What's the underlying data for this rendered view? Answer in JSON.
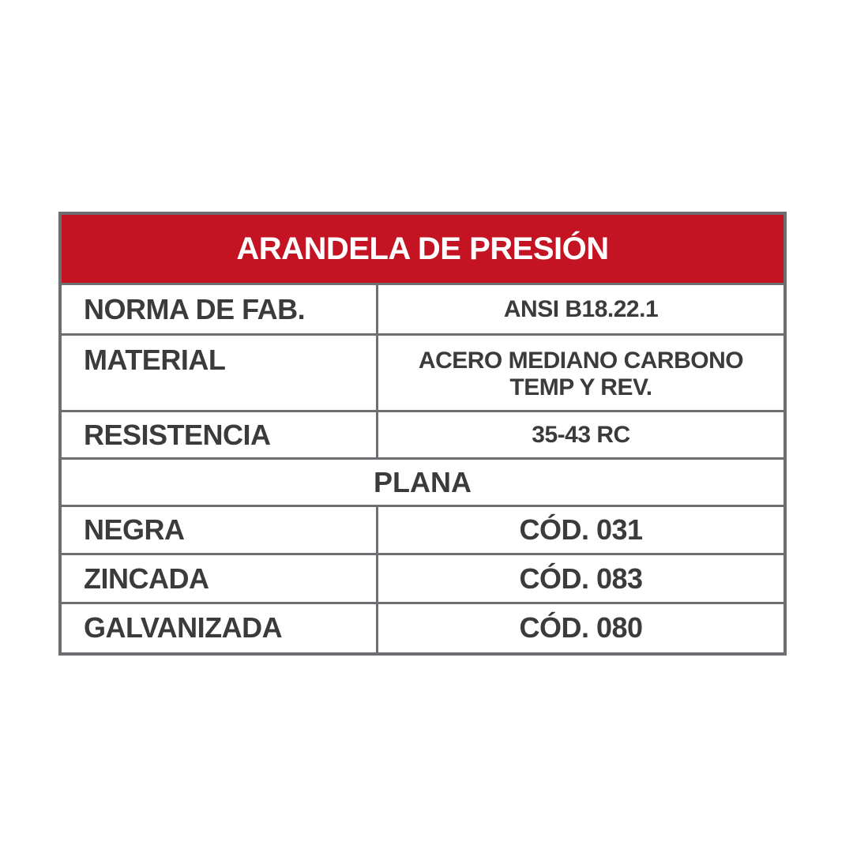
{
  "title": "ARANDELA DE PRESIÓN",
  "accent_color": "#c41424",
  "specs": [
    {
      "label": "NORMA DE FAB.",
      "value": "ANSI B18.22.1"
    },
    {
      "label": "MATERIAL",
      "value_lines": [
        "ACERO MEDIANO CARBONO",
        "TEMP Y REV."
      ]
    },
    {
      "label": "RESISTENCIA",
      "value": "35-43 RC"
    }
  ],
  "section": "PLANA",
  "finishes": [
    {
      "label": "NEGRA",
      "code": "CÓD. 031"
    },
    {
      "label": "ZINCADA",
      "code": "CÓD. 083"
    },
    {
      "label": "GALVANIZADA",
      "code": "CÓD. 080"
    }
  ]
}
